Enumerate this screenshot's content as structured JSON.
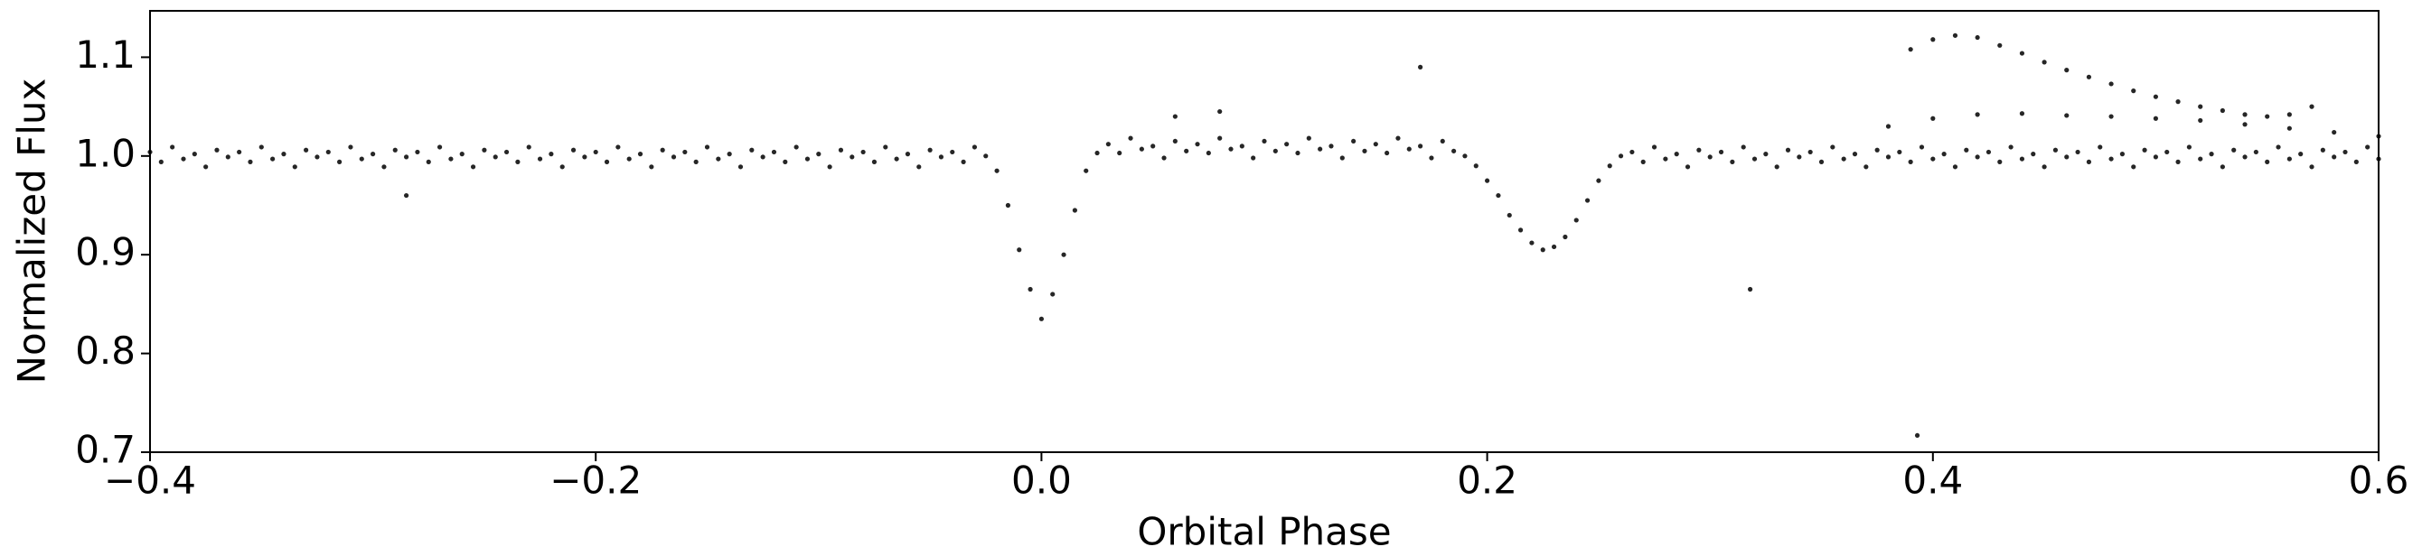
{
  "chart_data": {
    "type": "scatter",
    "x_label": "Orbital Phase",
    "y_label": "Normalized Flux",
    "xlim": [
      -0.4,
      0.6
    ],
    "ylim": [
      0.7,
      1.147
    ],
    "xticks": [
      {
        "value": -0.4,
        "label": "−0.4"
      },
      {
        "value": -0.2,
        "label": "−0.2"
      },
      {
        "value": 0.0,
        "label": "0.0"
      },
      0.2,
      0.4,
      0.6
    ],
    "yticks": [
      0.7,
      0.8,
      0.9,
      {
        "value": 1.0,
        "label": "1.0"
      },
      1.1
    ],
    "color": "#000000",
    "x": [
      -0.4,
      -0.395,
      -0.39,
      -0.385,
      -0.38,
      -0.375,
      -0.37,
      -0.365,
      -0.36,
      -0.355,
      -0.35,
      -0.345,
      -0.34,
      -0.335,
      -0.33,
      -0.325,
      -0.32,
      -0.315,
      -0.31,
      -0.305,
      -0.3,
      -0.295,
      -0.29,
      -0.285,
      -0.28,
      -0.275,
      -0.27,
      -0.265,
      -0.26,
      -0.255,
      -0.25,
      -0.245,
      -0.24,
      -0.235,
      -0.23,
      -0.225,
      -0.22,
      -0.215,
      -0.21,
      -0.205,
      -0.2,
      -0.195,
      -0.19,
      -0.185,
      -0.18,
      -0.175,
      -0.17,
      -0.165,
      -0.16,
      -0.155,
      -0.15,
      -0.145,
      -0.14,
      -0.135,
      -0.13,
      -0.125,
      -0.12,
      -0.115,
      -0.11,
      -0.105,
      -0.1,
      -0.095,
      -0.09,
      -0.085,
      -0.08,
      -0.075,
      -0.07,
      -0.065,
      -0.06,
      -0.055,
      -0.05,
      -0.045,
      -0.04,
      -0.035,
      -0.03,
      -0.025,
      -0.02,
      -0.015,
      -0.01,
      -0.005,
      0,
      0.005,
      0.01,
      0.015,
      0.02,
      0.025,
      0.03,
      0.035,
      0.04,
      0.045,
      0.05,
      0.055,
      0.06,
      0.065,
      0.07,
      0.075,
      0.08,
      0.085,
      0.09,
      0.095,
      0.1,
      0.105,
      0.11,
      0.115,
      0.12,
      0.125,
      0.13,
      0.135,
      0.14,
      0.145,
      0.15,
      0.155,
      0.16,
      0.165,
      0.17,
      0.175,
      0.18,
      0.185,
      0.19,
      0.195,
      0.2,
      0.205,
      0.21,
      0.215,
      0.22,
      0.225,
      0.23,
      0.235,
      0.24,
      0.245,
      0.25,
      0.255,
      0.26,
      0.265,
      0.27,
      0.275,
      0.28,
      0.285,
      0.29,
      0.295,
      0.3,
      0.305,
      0.31,
      0.315,
      0.32,
      0.325,
      0.33,
      0.335,
      0.34,
      0.345,
      0.35,
      0.355,
      0.36,
      0.365,
      0.37,
      0.375,
      0.38,
      0.385,
      0.39,
      0.395,
      0.4,
      0.405,
      0.41,
      0.415,
      0.42,
      0.425,
      0.43,
      0.435,
      0.44,
      0.445,
      0.45,
      0.455,
      0.46,
      0.465,
      0.47,
      0.475,
      0.48,
      0.485,
      0.49,
      0.495,
      0.5,
      0.505,
      0.51,
      0.515,
      0.52,
      0.525,
      0.53,
      0.535,
      0.54,
      0.545,
      0.55,
      0.555,
      0.56,
      0.565,
      0.57,
      0.575,
      0.58,
      0.585,
      0.59,
      0.595,
      0.6,
      0.39,
      0.4,
      0.41,
      0.42,
      0.43,
      0.44,
      0.45,
      0.46,
      0.47,
      0.48,
      0.49,
      0.5,
      0.51,
      0.52,
      0.53,
      0.54,
      0.55,
      0.56,
      0.57,
      0.38,
      0.4,
      0.42,
      0.44,
      0.46,
      0.48,
      0.5,
      0.52,
      0.54,
      0.56,
      0.58,
      0.6,
      0.393,
      0.318,
      0.17,
      -0.285,
      0.06,
      0.08
    ],
    "y": [
      1.004,
      0.994,
      1.009,
      0.997,
      1.002,
      0.989,
      1.006,
      0.999,
      1.004,
      0.994,
      1.009,
      0.997,
      1.002,
      0.989,
      1.006,
      0.999,
      1.004,
      0.994,
      1.009,
      0.997,
      1.002,
      0.989,
      1.006,
      0.999,
      1.004,
      0.994,
      1.009,
      0.997,
      1.002,
      0.989,
      1.006,
      0.999,
      1.004,
      0.994,
      1.009,
      0.997,
      1.002,
      0.989,
      1.006,
      0.999,
      1.004,
      0.994,
      1.009,
      0.997,
      1.002,
      0.989,
      1.006,
      0.999,
      1.004,
      0.994,
      1.009,
      0.997,
      1.002,
      0.989,
      1.006,
      0.999,
      1.004,
      0.994,
      1.009,
      0.997,
      1.002,
      0.989,
      1.006,
      0.999,
      1.004,
      0.994,
      1.009,
      0.997,
      1.002,
      0.989,
      1.006,
      0.999,
      1.004,
      0.994,
      1.009,
      1.0,
      0.985,
      0.95,
      0.905,
      0.865,
      0.835,
      0.86,
      0.9,
      0.945,
      0.985,
      1.003,
      1.012,
      1.003,
      1.018,
      1.007,
      1.01,
      0.998,
      1.015,
      1.005,
      1.012,
      1.003,
      1.018,
      1.007,
      1.01,
      0.998,
      1.015,
      1.005,
      1.012,
      1.003,
      1.018,
      1.007,
      1.01,
      0.998,
      1.015,
      1.005,
      1.012,
      1.003,
      1.018,
      1.007,
      1.01,
      0.998,
      1.015,
      1.005,
      1.0,
      0.99,
      0.975,
      0.96,
      0.94,
      0.925,
      0.912,
      0.905,
      0.908,
      0.918,
      0.935,
      0.955,
      0.975,
      0.99,
      1.0,
      1.004,
      0.994,
      1.009,
      0.997,
      1.002,
      0.989,
      1.006,
      0.999,
      1.004,
      0.994,
      1.009,
      0.997,
      1.002,
      0.989,
      1.006,
      0.999,
      1.004,
      0.994,
      1.009,
      0.997,
      1.002,
      0.989,
      1.006,
      0.999,
      1.004,
      0.994,
      1.009,
      0.997,
      1.002,
      0.989,
      1.006,
      0.999,
      1.004,
      0.994,
      1.009,
      0.997,
      1.002,
      0.989,
      1.006,
      0.999,
      1.004,
      0.994,
      1.009,
      0.997,
      1.002,
      0.989,
      1.006,
      0.999,
      1.004,
      0.994,
      1.009,
      0.997,
      1.002,
      0.989,
      1.006,
      0.999,
      1.004,
      0.994,
      1.009,
      0.997,
      1.002,
      0.989,
      1.006,
      0.999,
      1.004,
      0.994,
      1.009,
      0.997,
      1.108,
      1.118,
      1.122,
      1.12,
      1.112,
      1.104,
      1.095,
      1.087,
      1.08,
      1.073,
      1.066,
      1.06,
      1.055,
      1.05,
      1.046,
      1.042,
      1.04,
      1.042,
      1.05,
      1.03,
      1.038,
      1.042,
      1.043,
      1.041,
      1.04,
      1.038,
      1.036,
      1.032,
      1.028,
      1.024,
      1.02,
      0.717,
      0.865,
      1.09,
      0.96,
      1.04,
      1.045
    ]
  }
}
